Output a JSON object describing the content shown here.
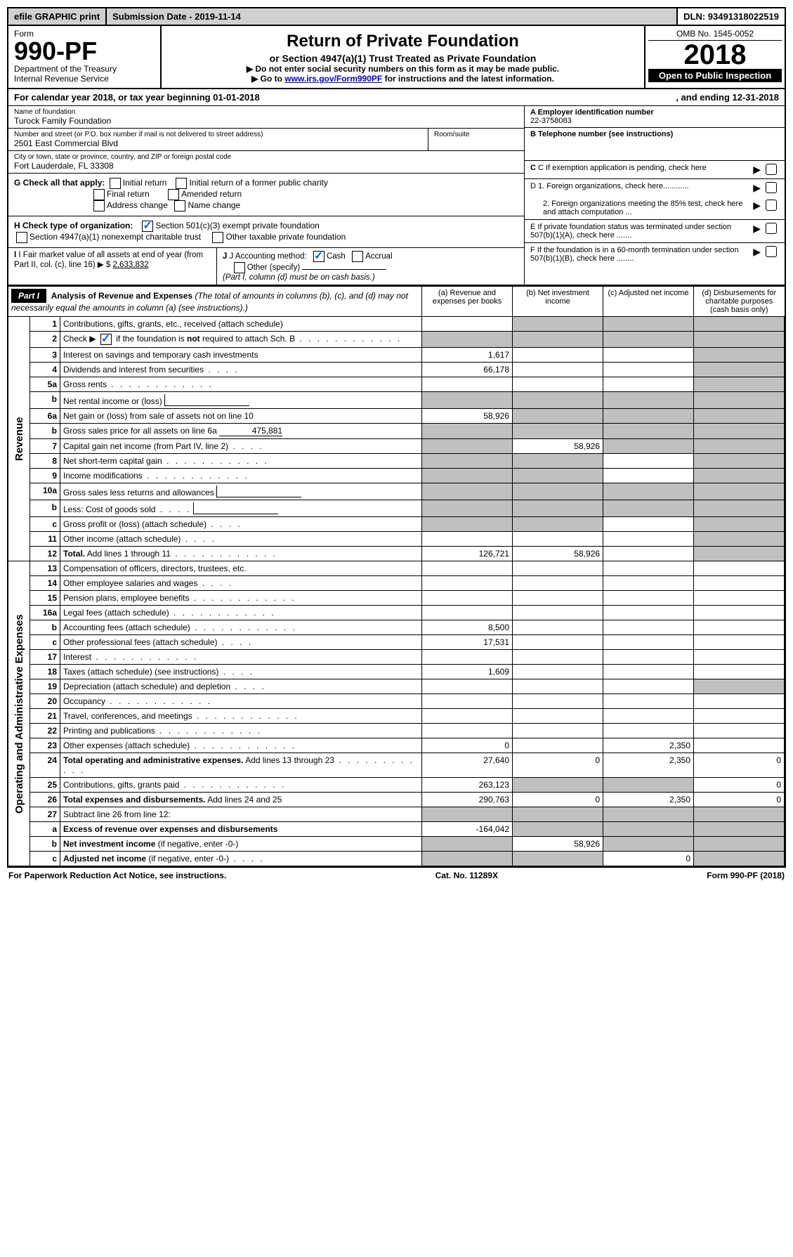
{
  "topbar": {
    "efile": "efile GRAPHIC print",
    "submission": "Submission Date - 2019-11-14",
    "dln": "DLN: 93491318022519"
  },
  "header": {
    "form_label": "Form",
    "form_number": "990-PF",
    "dept": "Department of the Treasury",
    "irs": "Internal Revenue Service",
    "title": "Return of Private Foundation",
    "subtitle": "or Section 4947(a)(1) Trust Treated as Private Foundation",
    "note1": "▶ Do not enter social security numbers on this form as it may be made public.",
    "note2_pre": "▶ Go to ",
    "note2_link": "www.irs.gov/Form990PF",
    "note2_post": " for instructions and the latest information.",
    "omb": "OMB No. 1545-0052",
    "year": "2018",
    "inspection": "Open to Public Inspection"
  },
  "calyear": {
    "left": "For calendar year 2018, or tax year beginning 01-01-2018",
    "right": ", and ending 12-31-2018"
  },
  "info": {
    "name_label": "Name of foundation",
    "name": "Turock Family Foundation",
    "addr_label": "Number and street (or P.O. box number if mail is not delivered to street address)",
    "addr": "2501 East Commercial Blvd",
    "room_label": "Room/suite",
    "city_label": "City or town, state or province, country, and ZIP or foreign postal code",
    "city": "Fort Lauderdale, FL  33308",
    "ein_label": "A Employer identification number",
    "ein": "22-3758083",
    "tel_label": "B Telephone number (see instructions)",
    "c_label": "C If exemption application is pending, check here",
    "d1": "D 1. Foreign organizations, check here............",
    "d2": "2. Foreign organizations meeting the 85% test, check here and attach computation ...",
    "e_label": "E  If private foundation status was terminated under section 507(b)(1)(A), check here .......",
    "f_label": "F  If the foundation is in a 60-month termination under section 507(b)(1)(B), check here ........"
  },
  "checks": {
    "g_label": "G Check all that apply:",
    "initial": "Initial return",
    "initial_former": "Initial return of a former public charity",
    "final": "Final return",
    "amended": "Amended return",
    "addr_change": "Address change",
    "name_change": "Name change",
    "h_label": "H Check type of organization:",
    "h501c3": "Section 501(c)(3) exempt private foundation",
    "h4947": "Section 4947(a)(1) nonexempt charitable trust",
    "hother": "Other taxable private foundation",
    "i_label": "I Fair market value of all assets at end of year (from Part II, col. (c), line 16) ▶ $",
    "i_value": "2,633,832",
    "j_label": "J Accounting method:",
    "j_cash": "Cash",
    "j_accrual": "Accrual",
    "j_other": "Other (specify)",
    "j_note": "(Part I, column (d) must be on cash basis.)"
  },
  "part1": {
    "label": "Part I",
    "title": "Analysis of Revenue and Expenses",
    "title_note": "(The total of amounts in columns (b), (c), and (d) may not necessarily equal the amounts in column (a) (see instructions).)",
    "col_a": "(a)   Revenue and expenses per books",
    "col_b": "(b)  Net investment income",
    "col_c": "(c)  Adjusted net income",
    "col_d": "(d)  Disbursements for charitable purposes (cash basis only)"
  },
  "sides": {
    "revenue": "Revenue",
    "expenses": "Operating and Administrative Expenses"
  },
  "rows": [
    {
      "n": "1",
      "desc": "Contributions, gifts, grants, etc., received (attach schedule)",
      "a": "",
      "b": "sh",
      "c": "sh",
      "d": "sh"
    },
    {
      "n": "2",
      "desc": "Check ▶ [chk] if the foundation is <b>not</b> required to attach Sch. B",
      "a": "sh",
      "b": "sh",
      "c": "sh",
      "d": "sh",
      "checked": true,
      "dots": true
    },
    {
      "n": "3",
      "desc": "Interest on savings and temporary cash investments",
      "a": "1,617",
      "b": "",
      "c": "",
      "d": "sh"
    },
    {
      "n": "4",
      "desc": "Dividends and interest from securities",
      "a": "66,178",
      "b": "",
      "c": "",
      "d": "sh",
      "dots_short": true
    },
    {
      "n": "5a",
      "desc": "Gross rents",
      "a": "",
      "b": "",
      "c": "",
      "d": "sh",
      "dots": true
    },
    {
      "n": "b",
      "desc": "Net rental income or (loss)",
      "a": "sh",
      "b": "sh",
      "c": "sh",
      "d": "sh",
      "blank_after": true
    },
    {
      "n": "6a",
      "desc": "Net gain or (loss) from sale of assets not on line 10",
      "a": "58,926",
      "b": "sh",
      "c": "sh",
      "d": "sh"
    },
    {
      "n": "b",
      "desc": "Gross sales price for all assets on line 6a",
      "a": "sh",
      "b": "sh",
      "c": "sh",
      "d": "sh",
      "inline_val": "475,881"
    },
    {
      "n": "7",
      "desc": "Capital gain net income (from Part IV, line 2)",
      "a": "sh",
      "b": "58,926",
      "c": "sh",
      "d": "sh",
      "dots_short": true
    },
    {
      "n": "8",
      "desc": "Net short-term capital gain",
      "a": "sh",
      "b": "sh",
      "c": "",
      "d": "sh",
      "dots": true
    },
    {
      "n": "9",
      "desc": "Income modifications",
      "a": "sh",
      "b": "sh",
      "c": "",
      "d": "sh",
      "dots": true
    },
    {
      "n": "10a",
      "desc": "Gross sales less returns and allowances",
      "a": "sh",
      "b": "sh",
      "c": "sh",
      "d": "sh",
      "blank_after": true
    },
    {
      "n": "b",
      "desc": "Less: Cost of goods sold",
      "a": "sh",
      "b": "sh",
      "c": "sh",
      "d": "sh",
      "dots_short": true,
      "blank_after": true
    },
    {
      "n": "c",
      "desc": "Gross profit or (loss) (attach schedule)",
      "a": "sh",
      "b": "sh",
      "c": "",
      "d": "sh",
      "dots_short": true
    },
    {
      "n": "11",
      "desc": "Other income (attach schedule)",
      "a": "",
      "b": "",
      "c": "",
      "d": "sh",
      "dots_short": true
    },
    {
      "n": "12",
      "desc": "<b>Total.</b> Add lines 1 through 11",
      "a": "126,721",
      "b": "58,926",
      "c": "",
      "d": "sh",
      "dots": true
    }
  ],
  "exp_rows": [
    {
      "n": "13",
      "desc": "Compensation of officers, directors, trustees, etc.",
      "a": "",
      "b": "",
      "c": "",
      "d": ""
    },
    {
      "n": "14",
      "desc": "Other employee salaries and wages",
      "a": "",
      "b": "",
      "c": "",
      "d": "",
      "dots_short": true
    },
    {
      "n": "15",
      "desc": "Pension plans, employee benefits",
      "a": "",
      "b": "",
      "c": "",
      "d": "",
      "dots": true
    },
    {
      "n": "16a",
      "desc": "Legal fees (attach schedule)",
      "a": "",
      "b": "",
      "c": "",
      "d": "",
      "dots": true
    },
    {
      "n": "b",
      "desc": "Accounting fees (attach schedule)",
      "a": "8,500",
      "b": "",
      "c": "",
      "d": "",
      "dots": true
    },
    {
      "n": "c",
      "desc": "Other professional fees (attach schedule)",
      "a": "17,531",
      "b": "",
      "c": "",
      "d": "",
      "dots_short": true
    },
    {
      "n": "17",
      "desc": "Interest",
      "a": "",
      "b": "",
      "c": "",
      "d": "",
      "dots": true
    },
    {
      "n": "18",
      "desc": "Taxes (attach schedule) (see instructions)",
      "a": "1,609",
      "b": "",
      "c": "",
      "d": "",
      "dots_short": true
    },
    {
      "n": "19",
      "desc": "Depreciation (attach schedule) and depletion",
      "a": "",
      "b": "",
      "c": "",
      "d": "sh",
      "dots_short": true
    },
    {
      "n": "20",
      "desc": "Occupancy",
      "a": "",
      "b": "",
      "c": "",
      "d": "",
      "dots": true
    },
    {
      "n": "21",
      "desc": "Travel, conferences, and meetings",
      "a": "",
      "b": "",
      "c": "",
      "d": "",
      "dots": true
    },
    {
      "n": "22",
      "desc": "Printing and publications",
      "a": "",
      "b": "",
      "c": "",
      "d": "",
      "dots": true
    },
    {
      "n": "23",
      "desc": "Other expenses (attach schedule)",
      "a": "0",
      "b": "",
      "c": "2,350",
      "d": "",
      "dots": true
    },
    {
      "n": "24",
      "desc": "<b>Total operating and administrative expenses.</b> Add lines 13 through 23",
      "a": "27,640",
      "b": "0",
      "c": "2,350",
      "d": "0",
      "dots": true
    },
    {
      "n": "25",
      "desc": "Contributions, gifts, grants paid",
      "a": "263,123",
      "b": "sh",
      "c": "sh",
      "d": "0",
      "dots": true
    },
    {
      "n": "26",
      "desc": "<b>Total expenses and disbursements.</b> Add lines 24 and 25",
      "a": "290,763",
      "b": "0",
      "c": "2,350",
      "d": "0"
    },
    {
      "n": "27",
      "desc": "Subtract line 26 from line 12:",
      "a": "sh",
      "b": "sh",
      "c": "sh",
      "d": "sh"
    },
    {
      "n": "a",
      "desc": "<b>Excess of revenue over expenses and disbursements</b>",
      "a": "-164,042",
      "b": "sh",
      "c": "sh",
      "d": "sh"
    },
    {
      "n": "b",
      "desc": "<b>Net investment income</b> (if negative, enter -0-)",
      "a": "sh",
      "b": "58,926",
      "c": "sh",
      "d": "sh"
    },
    {
      "n": "c",
      "desc": "<b>Adjusted net income</b> (if negative, enter -0-)",
      "a": "sh",
      "b": "sh",
      "c": "0",
      "d": "sh",
      "dots_short": true
    }
  ],
  "footer": {
    "left": "For Paperwork Reduction Act Notice, see instructions.",
    "center": "Cat. No. 11289X",
    "right": "Form 990-PF (2018)"
  }
}
